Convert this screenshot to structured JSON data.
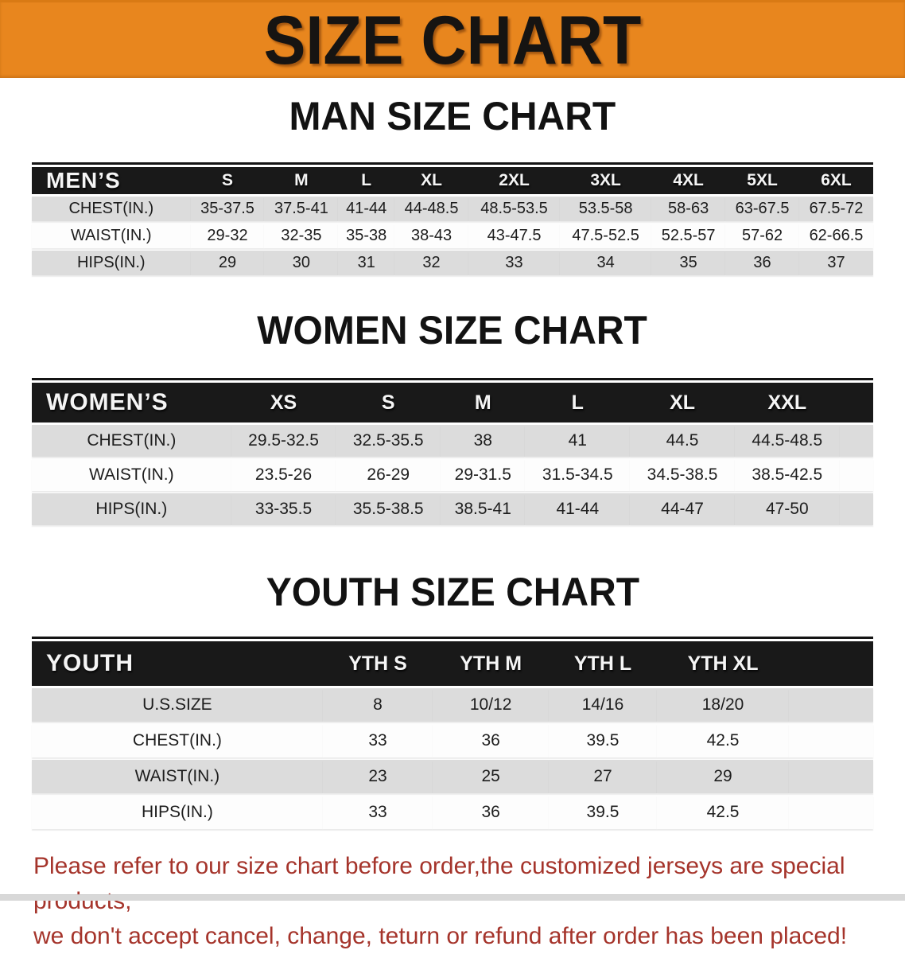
{
  "banner": {
    "title": "SIZE CHART"
  },
  "sections": [
    {
      "id": "men",
      "heading": "MAN SIZE CHART",
      "header": [
        "MEN’S",
        "S",
        "M",
        "L",
        "XL",
        "2XL",
        "3XL",
        "4XL",
        "5XL",
        "6XL"
      ],
      "rows": [
        [
          "CHEST(IN.)",
          "35-37.5",
          "37.5-41",
          "41-44",
          "44-48.5",
          "48.5-53.5",
          "53.5-58",
          "58-63",
          "63-67.5",
          "67.5-72"
        ],
        [
          "WAIST(IN.)",
          "29-32",
          "32-35",
          "35-38",
          "38-43",
          "43-47.5",
          "47.5-52.5",
          "52.5-57",
          "57-62",
          "62-66.5"
        ],
        [
          "HIPS(IN.)",
          "29",
          "30",
          "31",
          "32",
          "33",
          "34",
          "35",
          "36",
          "37"
        ]
      ]
    },
    {
      "id": "women",
      "heading": "WOMEN SIZE CHART",
      "header": [
        "WOMEN’S",
        "XS",
        "S",
        "M",
        "L",
        "XL",
        "XXL"
      ],
      "rows": [
        [
          "CHEST(IN.)",
          "29.5-32.5",
          "32.5-35.5",
          "38",
          "41",
          "44.5",
          "44.5-48.5"
        ],
        [
          "WAIST(IN.)",
          "23.5-26",
          "26-29",
          "29-31.5",
          "31.5-34.5",
          "34.5-38.5",
          "38.5-42.5"
        ],
        [
          "HIPS(IN.)",
          "33-35.5",
          "35.5-38.5",
          "38.5-41",
          "41-44",
          "44-47",
          "47-50"
        ]
      ]
    },
    {
      "id": "youth",
      "heading": "YOUTH SIZE CHART",
      "header": [
        "YOUTH",
        "YTH S",
        "YTH M",
        "YTH L",
        "YTH XL"
      ],
      "rows": [
        [
          "U.S.SIZE",
          "8",
          "10/12",
          "14/16",
          "18/20"
        ],
        [
          "CHEST(IN.)",
          "33",
          "36",
          "39.5",
          "42.5"
        ],
        [
          "WAIST(IN.)",
          "23",
          "25",
          "27",
          "29"
        ],
        [
          "HIPS(IN.)",
          "33",
          "36",
          "39.5",
          "42.5"
        ]
      ]
    }
  ],
  "notice": {
    "line1": "Please refer to our size chart before order,the customized jerseys are special products,",
    "line2": "we don't accept cancel, change, teturn or refund after order has been placed!"
  },
  "colors": {
    "banner_orange": "#E8861E",
    "header_black": "#191919",
    "row_gray": "#DCDCDC",
    "notice_red": "#A5342B"
  }
}
